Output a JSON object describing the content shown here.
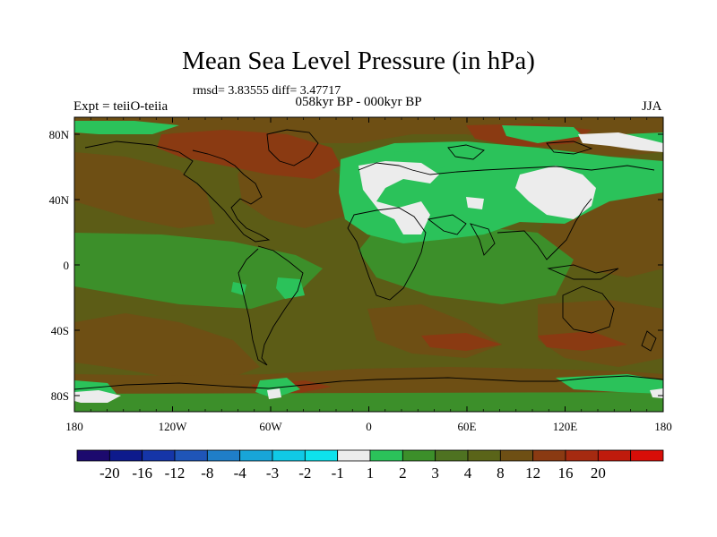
{
  "title": "Mean Sea Level Pressure (in hPa)",
  "stats": "rmsd= 3.83555 diff= 3.47717",
  "experiment": "Expt = teiiO-teiia",
  "period": "058kyr BP - 000kyr BP",
  "season": "JJA",
  "lat_ticks": [
    "80N",
    "40N",
    "0",
    "40S",
    "80S"
  ],
  "lon_ticks": [
    "180",
    "120W",
    "60W",
    "0",
    "60E",
    "120E",
    "180"
  ],
  "colorbar": {
    "colors": [
      "#1c0a6e",
      "#0d1a8c",
      "#1535a8",
      "#1f55b8",
      "#1f7ec8",
      "#18a5d8",
      "#10c9e6",
      "#0ee2ec",
      "#ececec",
      "#2bc25a",
      "#3c8f2a",
      "#4e7221",
      "#5a6419",
      "#6e4f14",
      "#8a3a12",
      "#a52a10",
      "#bf1b0c",
      "#d80e08"
    ],
    "labels": [
      "-20",
      "-16",
      "-12",
      "-8",
      "-4",
      "-3",
      "-2",
      "-1",
      "1",
      "2",
      "3",
      "4",
      "8",
      "12",
      "16",
      "20"
    ]
  },
  "map_colors": {
    "base": "#5c5c16",
    "brown": "#6e4f14",
    "red_brown": "#8a3a12",
    "green": "#2bc25a",
    "dark_green": "#3c8f2a",
    "white": "#ececec"
  }
}
